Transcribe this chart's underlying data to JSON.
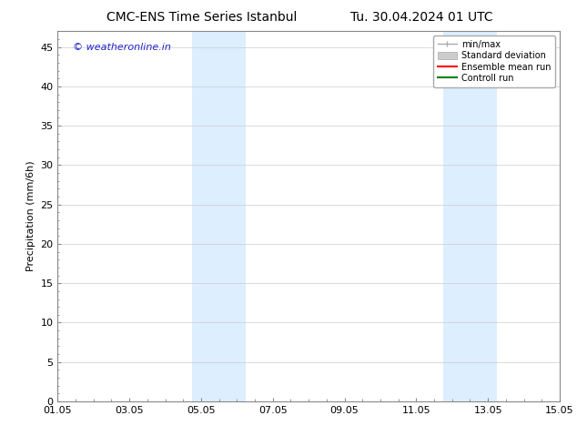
{
  "title_left": "CMC-ENS Time Series Istanbul",
  "title_right": "Tu. 30.04.2024 01 UTC",
  "xlabel": "",
  "ylabel": "Precipitation (mm/6h)",
  "ylim": [
    0,
    47
  ],
  "yticks": [
    0,
    5,
    10,
    15,
    20,
    25,
    30,
    35,
    40,
    45
  ],
  "xtick_labels": [
    "01.05",
    "03.05",
    "05.05",
    "07.05",
    "09.05",
    "11.05",
    "13.05",
    "15.05"
  ],
  "xtick_positions": [
    0,
    2,
    4,
    6,
    8,
    10,
    12,
    14
  ],
  "xlim": [
    0,
    14
  ],
  "shaded_bands": [
    {
      "x_start": 3.75,
      "x_end": 5.25,
      "color": "#ddeeff"
    },
    {
      "x_start": 10.75,
      "x_end": 12.25,
      "color": "#ddeeff"
    }
  ],
  "legend_entries": [
    {
      "label": "min/max",
      "color": "#aaaaaa",
      "lw": 1.0,
      "style": "minmax"
    },
    {
      "label": "Standard deviation",
      "color": "#cccccc",
      "lw": 5,
      "style": "band"
    },
    {
      "label": "Ensemble mean run",
      "color": "#ff0000",
      "lw": 1.5,
      "style": "line"
    },
    {
      "label": "Controll run",
      "color": "#008000",
      "lw": 1.5,
      "style": "line"
    }
  ],
  "watermark_text": "© weatheronline.in",
  "watermark_color": "#2222cc",
  "watermark_fontsize": 8,
  "background_color": "#ffffff",
  "plot_bg_color": "#ffffff",
  "grid_color": "#cccccc",
  "title_fontsize": 10,
  "ylabel_fontsize": 8,
  "tick_fontsize": 8,
  "legend_fontsize": 7
}
